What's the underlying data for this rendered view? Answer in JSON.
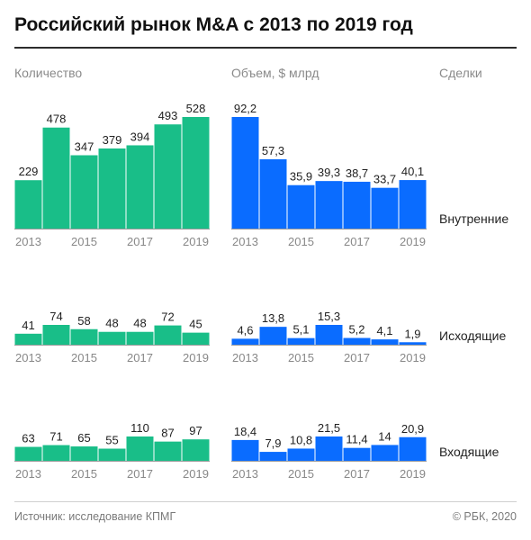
{
  "title": "Российский рынок M&A с 2013 по 2019 год",
  "headers": {
    "count": "Количество",
    "volume": "Объем, $ млрд",
    "deals": "Сделки"
  },
  "colors": {
    "count": "#19be88",
    "volume": "#0a6cff",
    "axis": "#9a9a9a",
    "label": "#222222",
    "tick": "#888888"
  },
  "footer": {
    "source": "Источник: исследование КПМГ",
    "copyright": "© РБК, 2020"
  },
  "chart_data": [
    {
      "type": "bar",
      "group": "Внутренние",
      "metric": "count",
      "categories": [
        "2013",
        "2014",
        "2015",
        "2016",
        "2017",
        "2018",
        "2019"
      ],
      "values": [
        229,
        478,
        347,
        379,
        394,
        493,
        528
      ],
      "labels": [
        "229",
        "478",
        "347",
        "379",
        "394",
        "493",
        "528"
      ],
      "tick_labels": [
        "2013",
        "2015",
        "2017",
        "2019"
      ]
    },
    {
      "type": "bar",
      "group": "Внутренние",
      "metric": "volume",
      "categories": [
        "2013",
        "2014",
        "2015",
        "2016",
        "2017",
        "2018",
        "2019"
      ],
      "values": [
        92.2,
        57.3,
        35.9,
        39.3,
        38.7,
        33.7,
        40.1
      ],
      "labels": [
        "92,2",
        "57,3",
        "35,9",
        "39,3",
        "38,7",
        "33,7",
        "40,1"
      ],
      "tick_labels": [
        "2013",
        "2015",
        "2017",
        "2019"
      ]
    },
    {
      "type": "bar",
      "group": "Исходящие",
      "metric": "count",
      "categories": [
        "2013",
        "2014",
        "2015",
        "2016",
        "2017",
        "2018",
        "2019"
      ],
      "values": [
        41,
        74,
        58,
        48,
        48,
        72,
        45
      ],
      "labels": [
        "41",
        "74",
        "58",
        "48",
        "48",
        "72",
        "45"
      ],
      "tick_labels": [
        "2013",
        "2015",
        "2017",
        "2019"
      ]
    },
    {
      "type": "bar",
      "group": "Исходящие",
      "metric": "volume",
      "categories": [
        "2013",
        "2014",
        "2015",
        "2016",
        "2017",
        "2018",
        "2019"
      ],
      "values": [
        4.6,
        13.8,
        5.1,
        15.3,
        5.2,
        4.1,
        1.9
      ],
      "labels": [
        "4,6",
        "13,8",
        "5,1",
        "15,3",
        "5,2",
        "4,1",
        "1,9"
      ],
      "tick_labels": [
        "2013",
        "2015",
        "2017",
        "2019"
      ]
    },
    {
      "type": "bar",
      "group": "Входящие",
      "metric": "count",
      "categories": [
        "2013",
        "2014",
        "2015",
        "2016",
        "2017",
        "2018",
        "2019"
      ],
      "values": [
        63,
        71,
        65,
        55,
        110,
        87,
        97
      ],
      "labels": [
        "63",
        "71",
        "65",
        "55",
        "110",
        "87",
        "97"
      ],
      "tick_labels": [
        "2013",
        "2015",
        "2017",
        "2019"
      ]
    },
    {
      "type": "bar",
      "group": "Входящие",
      "metric": "volume",
      "categories": [
        "2013",
        "2014",
        "2015",
        "2016",
        "2017",
        "2018",
        "2019"
      ],
      "values": [
        18.4,
        7.9,
        10.8,
        21.5,
        11.4,
        14,
        20.9
      ],
      "labels": [
        "18,4",
        "7,9",
        "10,8",
        "21,5",
        "11,4",
        "14",
        "20,9"
      ],
      "tick_labels": [
        "2013",
        "2015",
        "2017",
        "2019"
      ]
    }
  ]
}
